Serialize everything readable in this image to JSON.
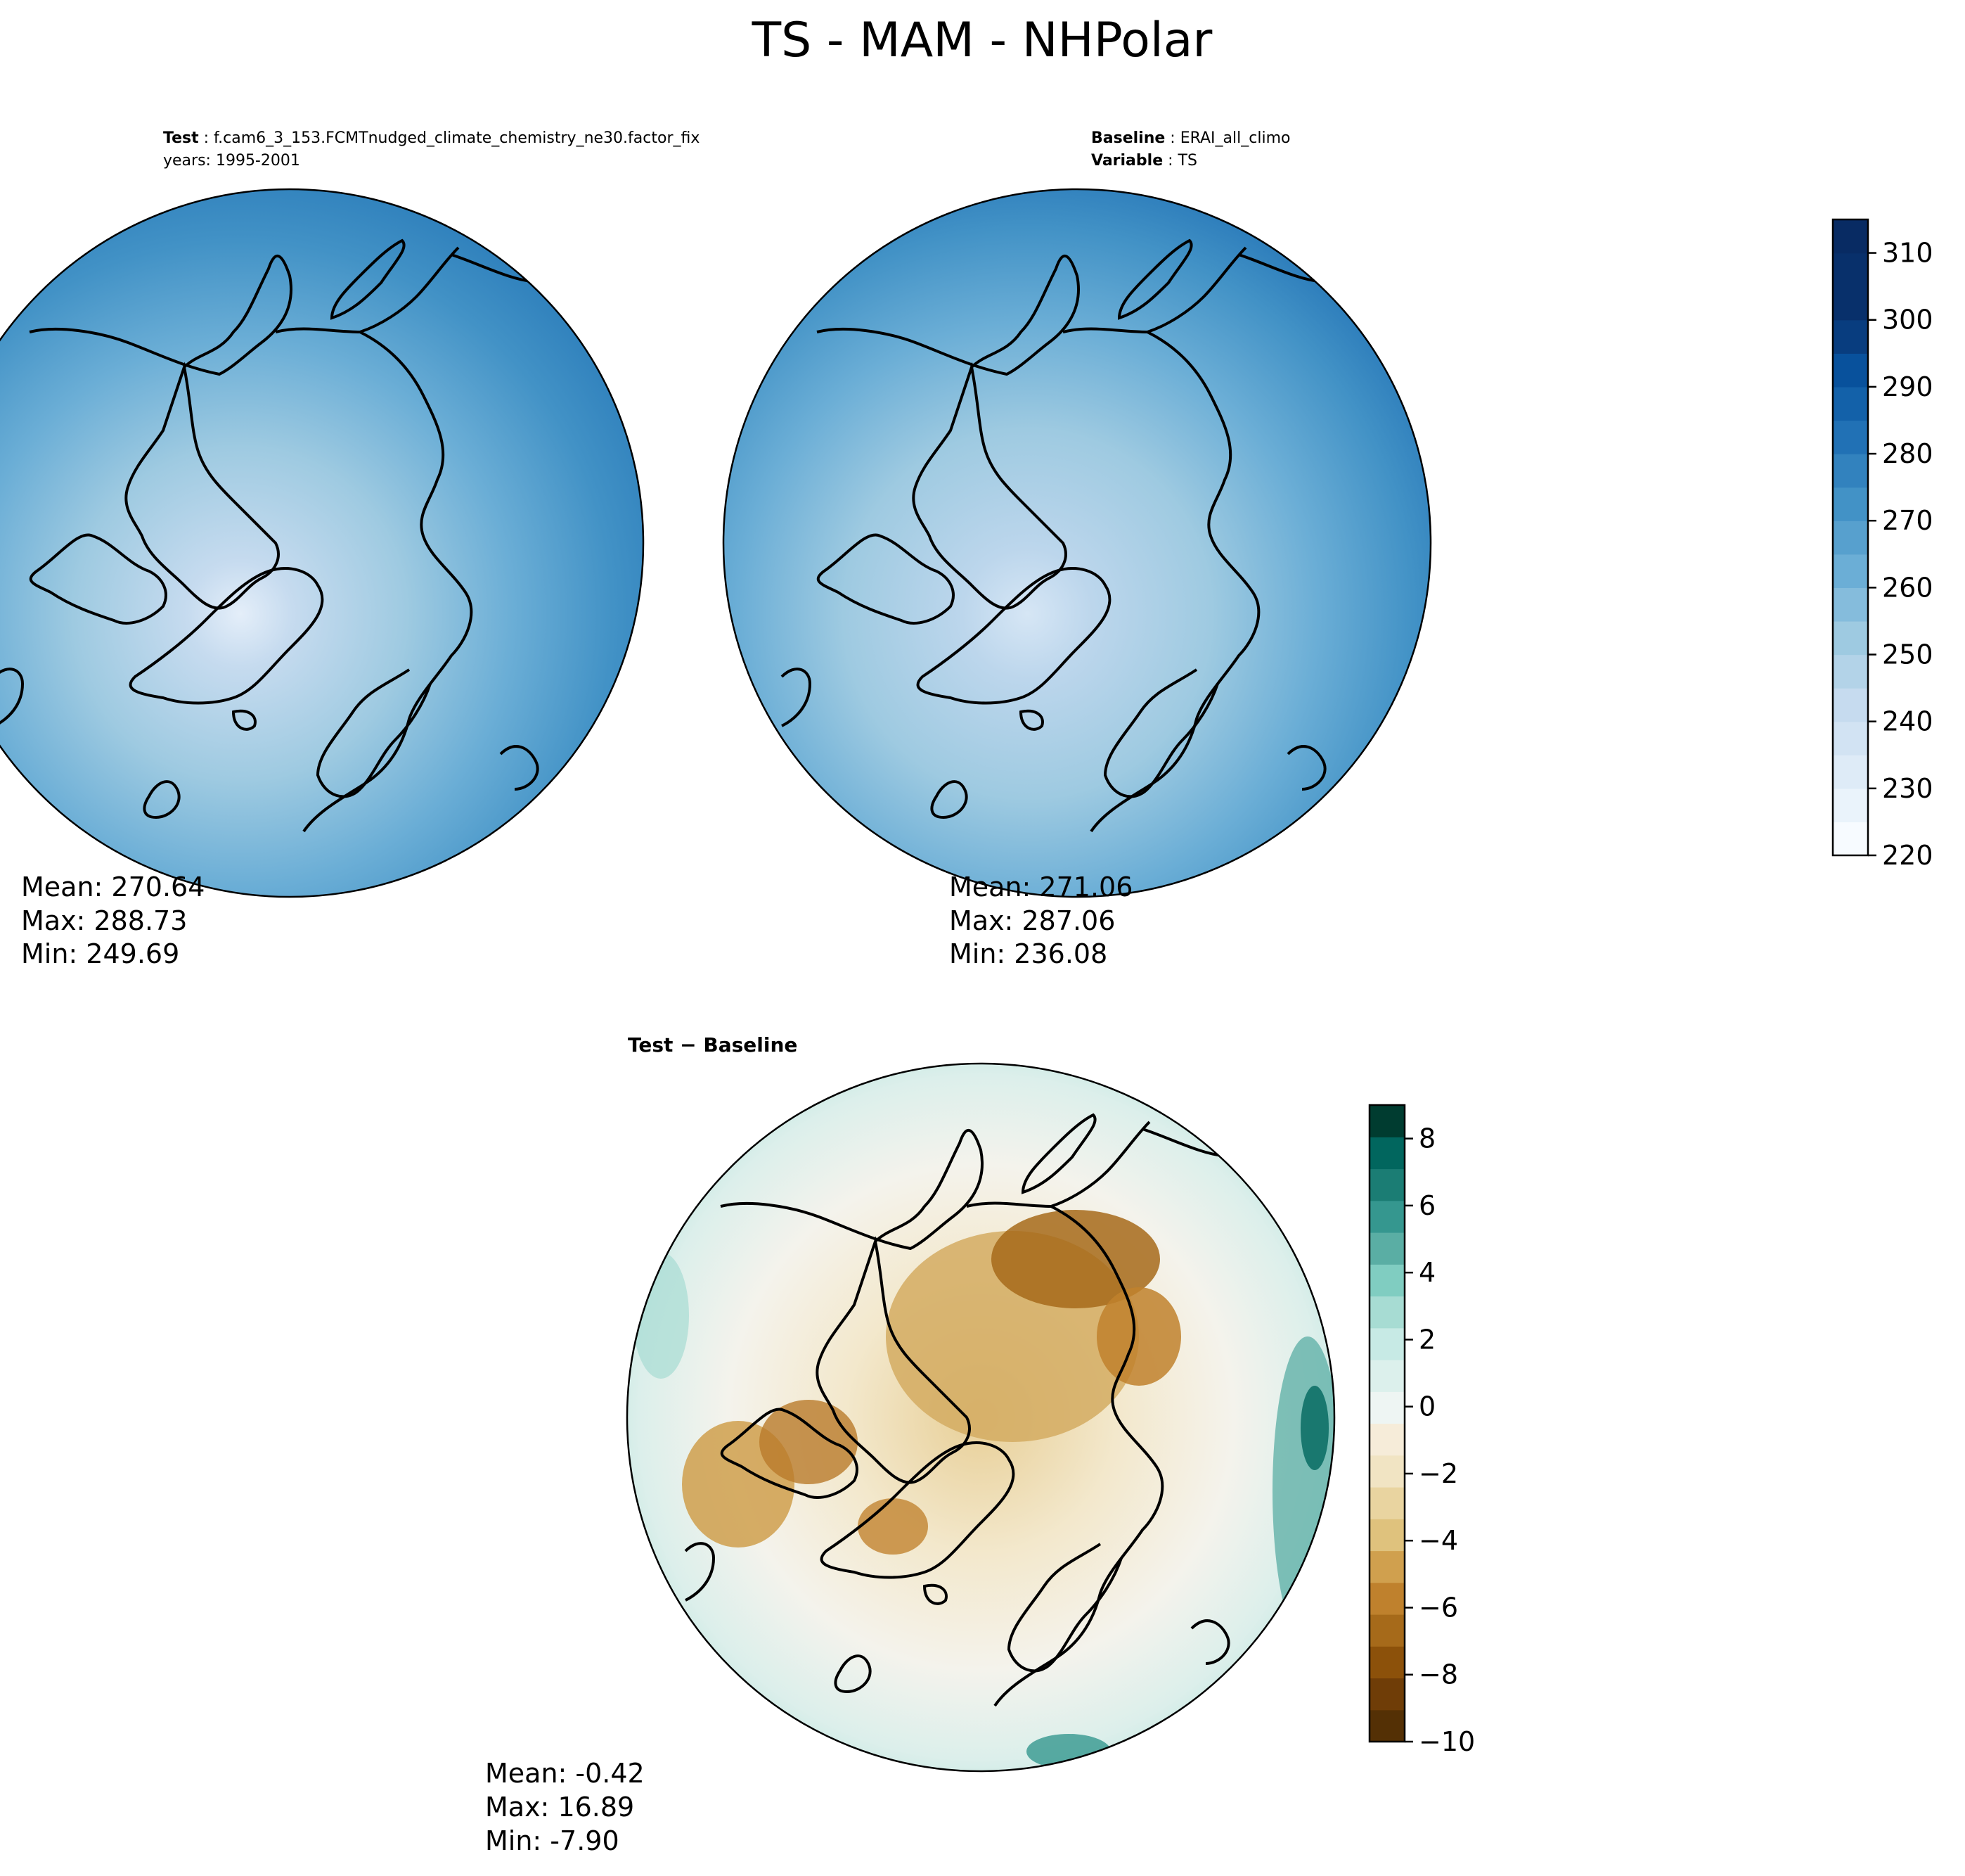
{
  "figure": {
    "title": "TS - MAM - NHPolar"
  },
  "chart_data": [
    {
      "type": "heatmap",
      "name": "test",
      "projection": "north-polar-stereographic",
      "header": {
        "line1_label": "Test",
        "line1_value": "f.cam6_3_153.FCMTnudged_climate_chemistry_ne30.factor_fix",
        "line2": "years: 1995-2001"
      },
      "stats": {
        "mean": "Mean: 270.64",
        "max": "Max: 288.73",
        "min": "Min: 249.69"
      },
      "value_range": [
        249.69,
        288.73
      ],
      "colormap": "Blues",
      "coastlines": true
    },
    {
      "type": "heatmap",
      "name": "baseline",
      "projection": "north-polar-stereographic",
      "header": {
        "line1_label": "Baseline",
        "line1_value": "ERAI_all_climo",
        "line2_label": "Variable",
        "line2_value": "TS"
      },
      "stats": {
        "mean": "Mean: 271.06",
        "max": "Max: 287.06",
        "min": "Min: 236.08"
      },
      "value_range": [
        236.08,
        287.06
      ],
      "colormap": "Blues",
      "coastlines": true,
      "colorbar": {
        "min": 220,
        "max": 315,
        "step": 5,
        "ticks": [
          "220",
          "230",
          "240",
          "250",
          "260",
          "270",
          "280",
          "290",
          "300",
          "310"
        ],
        "tick_values": [
          220,
          230,
          240,
          250,
          260,
          270,
          280,
          290,
          300,
          310
        ],
        "colors": [
          "#f7fbff",
          "#eaf3fb",
          "#deebf7",
          "#d2e3f3",
          "#c6dbef",
          "#b3d3e8",
          "#9ecae1",
          "#85bcdc",
          "#6baed6",
          "#57a0ce",
          "#4292c6",
          "#3282be",
          "#2171b5",
          "#1361a9",
          "#08519c",
          "#083d7f",
          "#08306b",
          "#08306b",
          "#082b63"
        ]
      }
    },
    {
      "type": "heatmap",
      "name": "difference",
      "projection": "north-polar-stereographic",
      "header": {
        "title": "Test − Baseline"
      },
      "stats": {
        "mean": "Mean: -0.42",
        "max": "Max: 16.89",
        "min": "Min: -7.90"
      },
      "value_range": [
        -7.9,
        16.89
      ],
      "colormap": "BrBG",
      "coastlines": true,
      "colorbar": {
        "min": -10,
        "max": 9,
        "step": 1,
        "ticks": [
          "−10",
          "−8",
          "−6",
          "−4",
          "−2",
          "0",
          "2",
          "4",
          "6",
          "8"
        ],
        "tick_values": [
          -10,
          -8,
          -6,
          -4,
          -2,
          0,
          2,
          4,
          6,
          8
        ],
        "colors": [
          "#543005",
          "#6f3d07",
          "#8c510a",
          "#a66a1a",
          "#bf812d",
          "#d0a04e",
          "#dfc27d",
          "#e9d4a0",
          "#f1e4c3",
          "#f6ecd9",
          "#eef5f3",
          "#dcf0ec",
          "#c7eae5",
          "#a7dcd3",
          "#80cdc1",
          "#5aaea4",
          "#35978f",
          "#1b7d74",
          "#01665e",
          "#003c30"
        ]
      }
    }
  ]
}
